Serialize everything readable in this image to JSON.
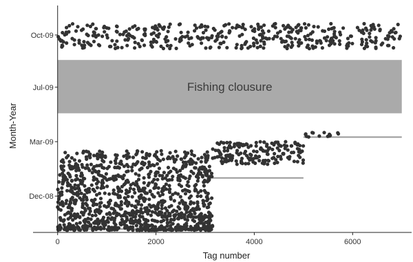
{
  "chart_data": {
    "type": "scatter",
    "xlabel": "Tag number",
    "ylabel": "Month-Year",
    "xlim": [
      -500,
      7200
    ],
    "xticks": [
      {
        "value": 0,
        "label": "0"
      },
      {
        "value": 2000,
        "label": "2000"
      },
      {
        "value": 4000,
        "label": "4000"
      },
      {
        "value": 6000,
        "label": "6000"
      }
    ],
    "ylim": [
      0,
      100
    ],
    "yticks": [
      {
        "value": 87,
        "label": "Oct-09"
      },
      {
        "value": 64,
        "label": "Jul-09"
      },
      {
        "value": 40,
        "label": "Mar-09"
      },
      {
        "value": 16,
        "label": "Dec-08"
      }
    ],
    "closure": {
      "label": "Fishing clousure",
      "x_range": [
        0,
        7000
      ],
      "y_range": [
        52.5,
        76
      ],
      "color": "#aaaaaa"
    },
    "release_lines": [
      {
        "x_start": 0,
        "x_end": 3150,
        "y": 1.5
      },
      {
        "x_start": 3150,
        "x_end": 5000,
        "y": 24
      },
      {
        "x_start": 5000,
        "x_end": 7000,
        "y": 42
      }
    ],
    "recapture_clusters": [
      {
        "period": "Oct-09",
        "x_range": [
          0,
          7000
        ],
        "y_range": [
          81,
          92
        ],
        "count": 420
      },
      {
        "period": "Mar-09",
        "x_range": [
          0,
          3150
        ],
        "y_range": [
          1,
          36
        ],
        "count": 1150
      },
      {
        "period": "Mar-09",
        "x_range": [
          3150,
          5000
        ],
        "y_range": [
          30,
          40
        ],
        "count": 170
      },
      {
        "period": "Mar-09",
        "x_range": [
          5000,
          5800
        ],
        "y_range": [
          42,
          44
        ],
        "count": 14
      }
    ],
    "point_color": "#333333",
    "line_color": "#999999"
  }
}
